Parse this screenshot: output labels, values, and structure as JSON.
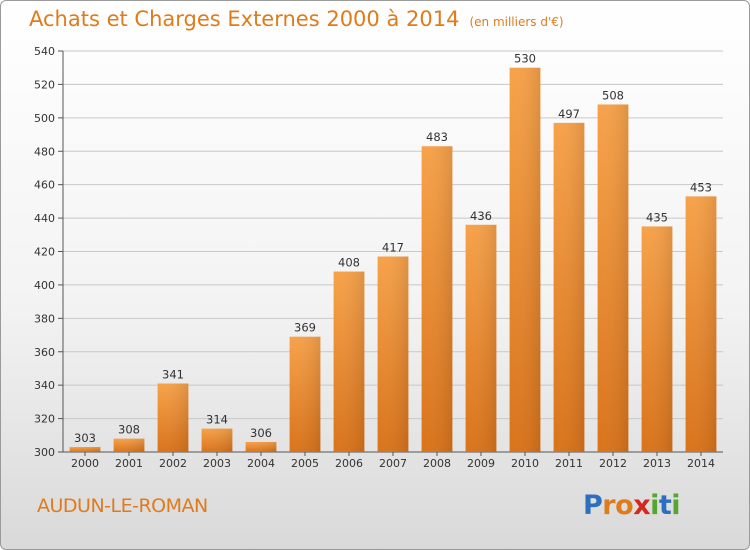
{
  "header": {
    "title": "Achats et Charges Externes 2000 à 2014",
    "unit": "(en milliers d'€)"
  },
  "footer": {
    "commune": "AUDUN-LE-ROMAN",
    "logo_letters": [
      "P",
      "r",
      "o",
      "x",
      "i",
      "t",
      "i"
    ],
    "logo_colors": [
      "#2d6fbf",
      "#e07b1c",
      "#e07b1c",
      "#d6261e",
      "#56a62e",
      "#2d6fbf",
      "#56a62e"
    ]
  },
  "chart_data": {
    "type": "bar",
    "categories": [
      "2000",
      "2001",
      "2002",
      "2003",
      "2004",
      "2005",
      "2006",
      "2007",
      "2008",
      "2009",
      "2010",
      "2011",
      "2012",
      "2013",
      "2014"
    ],
    "values": [
      303,
      308,
      341,
      314,
      306,
      369,
      408,
      417,
      483,
      436,
      530,
      497,
      508,
      435,
      453
    ],
    "ylim": [
      300,
      540
    ],
    "yticks": [
      300,
      320,
      340,
      360,
      380,
      400,
      420,
      440,
      460,
      480,
      500,
      520,
      540
    ],
    "grid": true,
    "bar_color": "#f08a2a",
    "data_labels": true
  }
}
